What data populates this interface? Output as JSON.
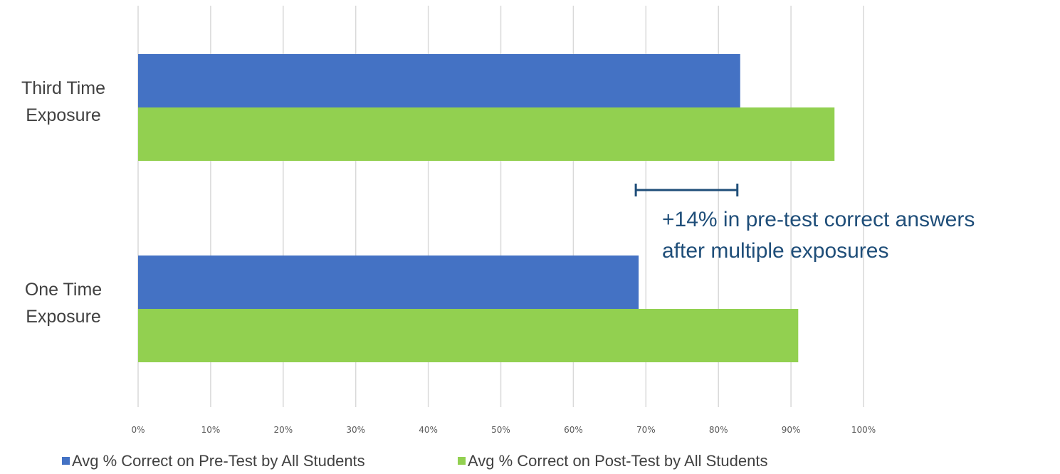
{
  "chart_data": {
    "type": "bar",
    "orientation": "horizontal",
    "categories": [
      "Third Time\nExposure",
      "One Time\nExposure"
    ],
    "series": [
      {
        "name": "Avg % Correct on Pre-Test by All Students",
        "values": [
          83,
          69
        ],
        "color": "#4472C4"
      },
      {
        "name": "Avg % Correct on Post-Test by All Students",
        "values": [
          96,
          91
        ],
        "color": "#92D050"
      }
    ],
    "xlim": [
      0,
      100
    ],
    "xticks": [
      "0%",
      "10%",
      "20%",
      "30%",
      "40%",
      "50%",
      "60%",
      "70%",
      "80%",
      "90%",
      "100%"
    ],
    "grid": true,
    "legend_position": "bottom",
    "annotation": {
      "lines": [
        "+14% in pre-test correct answers",
        "after multiple exposures"
      ],
      "range": [
        69,
        83
      ],
      "color": "#1F4E79"
    },
    "gridline_color": "#D9D9D9"
  }
}
